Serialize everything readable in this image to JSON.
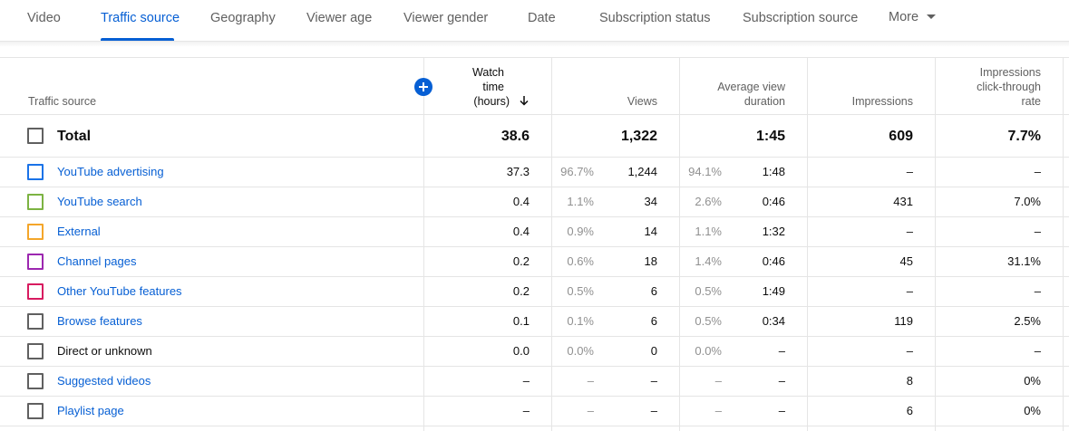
{
  "tabs": [
    {
      "label": "Video",
      "active": false
    },
    {
      "label": "Traffic source",
      "active": true
    },
    {
      "label": "Geography",
      "active": false
    },
    {
      "label": "Viewer age",
      "active": false
    },
    {
      "label": "Viewer gender",
      "active": false
    },
    {
      "label": "Date",
      "active": false
    },
    {
      "label": "Subscription status",
      "active": false
    },
    {
      "label": "Subscription source",
      "active": false
    },
    {
      "label": "More",
      "active": false
    }
  ],
  "columns": {
    "source": "Traffic source",
    "watch_time": [
      "Watch",
      "time",
      "(hours)"
    ],
    "views": "Views",
    "avg_duration": [
      "Average view",
      "duration"
    ],
    "impressions": "Impressions",
    "ctr": [
      "Impressions",
      "click-through",
      "rate"
    ]
  },
  "total": {
    "label": "Total",
    "watch_time": "38.6",
    "views": "1,322",
    "avg_duration": "1:45",
    "impressions": "609",
    "ctr": "7.7%"
  },
  "rows": [
    {
      "label": "YouTube advertising",
      "color": "#1a73e8",
      "watch_time": "37.3",
      "watch_pct": "96.7%",
      "views": "1,244",
      "views_pct": "94.1%",
      "avg_duration": "1:48",
      "impressions": "–",
      "ctr": "–"
    },
    {
      "label": "YouTube search",
      "color": "#7cb342",
      "watch_time": "0.4",
      "watch_pct": "1.1%",
      "views": "34",
      "views_pct": "2.6%",
      "avg_duration": "0:46",
      "impressions": "431",
      "ctr": "7.0%"
    },
    {
      "label": "External",
      "color": "#f4a62a",
      "watch_time": "0.4",
      "watch_pct": "0.9%",
      "views": "14",
      "views_pct": "1.1%",
      "avg_duration": "1:32",
      "impressions": "–",
      "ctr": "–"
    },
    {
      "label": "Channel pages",
      "color": "#9c27b0",
      "watch_time": "0.2",
      "watch_pct": "0.6%",
      "views": "18",
      "views_pct": "1.4%",
      "avg_duration": "0:46",
      "impressions": "45",
      "ctr": "31.1%"
    },
    {
      "label": "Other YouTube features",
      "color": "#d81b60",
      "watch_time": "0.2",
      "watch_pct": "0.5%",
      "views": "6",
      "views_pct": "0.5%",
      "avg_duration": "1:49",
      "impressions": "–",
      "ctr": "–"
    },
    {
      "label": "Browse features",
      "color": "#606060",
      "watch_time": "0.1",
      "watch_pct": "0.1%",
      "views": "6",
      "views_pct": "0.5%",
      "avg_duration": "0:34",
      "impressions": "119",
      "ctr": "2.5%"
    },
    {
      "label": "Direct or unknown",
      "color": "#606060",
      "watch_time": "0.0",
      "watch_pct": "0.0%",
      "views": "0",
      "views_pct": "0.0%",
      "avg_duration": "–",
      "impressions": "–",
      "ctr": "–"
    },
    {
      "label": "Suggested videos",
      "color": "#606060",
      "watch_time": "–",
      "watch_pct": "–",
      "views": "–",
      "views_pct": "–",
      "avg_duration": "–",
      "impressions": "8",
      "ctr": "0%"
    },
    {
      "label": "Playlist page",
      "color": "#606060",
      "watch_time": "–",
      "watch_pct": "–",
      "views": "–",
      "views_pct": "–",
      "avg_duration": "–",
      "impressions": "6",
      "ctr": "0%"
    }
  ]
}
